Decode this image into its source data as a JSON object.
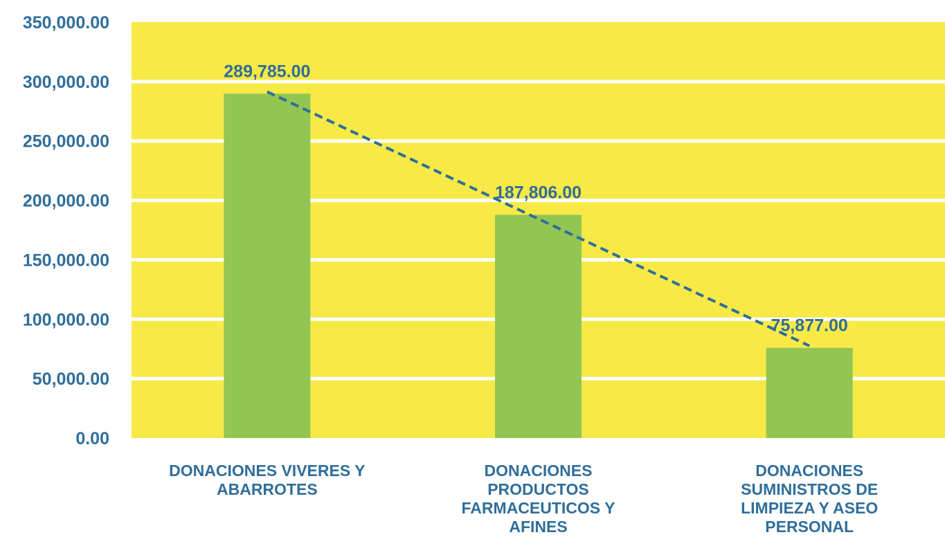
{
  "chart_data": {
    "type": "bar",
    "categories": [
      [
        "DONACIONES VIVERES Y",
        "ABARROTES"
      ],
      [
        "DONACIONES",
        "PRODUCTOS",
        "FARMACEUTICOS Y",
        "AFINES"
      ],
      [
        "DONACIONES",
        "SUMINISTROS DE",
        "LIMPIEZA Y ASEO",
        "PERSONAL"
      ]
    ],
    "values": [
      289785,
      187806,
      75877
    ],
    "data_labels": [
      "289,785.00",
      "187,806.00",
      "75,877.00"
    ],
    "yticks": [
      {
        "value": 0,
        "label": "0.00"
      },
      {
        "value": 50000,
        "label": "50,000.00"
      },
      {
        "value": 100000,
        "label": "100,000.00"
      },
      {
        "value": 150000,
        "label": "150,000.00"
      },
      {
        "value": 200000,
        "label": "200,000.00"
      },
      {
        "value": 250000,
        "label": "250,000.00"
      },
      {
        "value": 300000,
        "label": "300,000.00"
      },
      {
        "value": 350000,
        "label": "350,000.00"
      }
    ],
    "ylim": [
      0,
      350000
    ],
    "grid": true,
    "trendline": "linear dashed",
    "colors": {
      "plot_background": "#f7e946",
      "gridline": "#ffffff",
      "bar": "#92c552",
      "text": "#2f6e9b",
      "trendline": "#2f6e9b"
    }
  }
}
